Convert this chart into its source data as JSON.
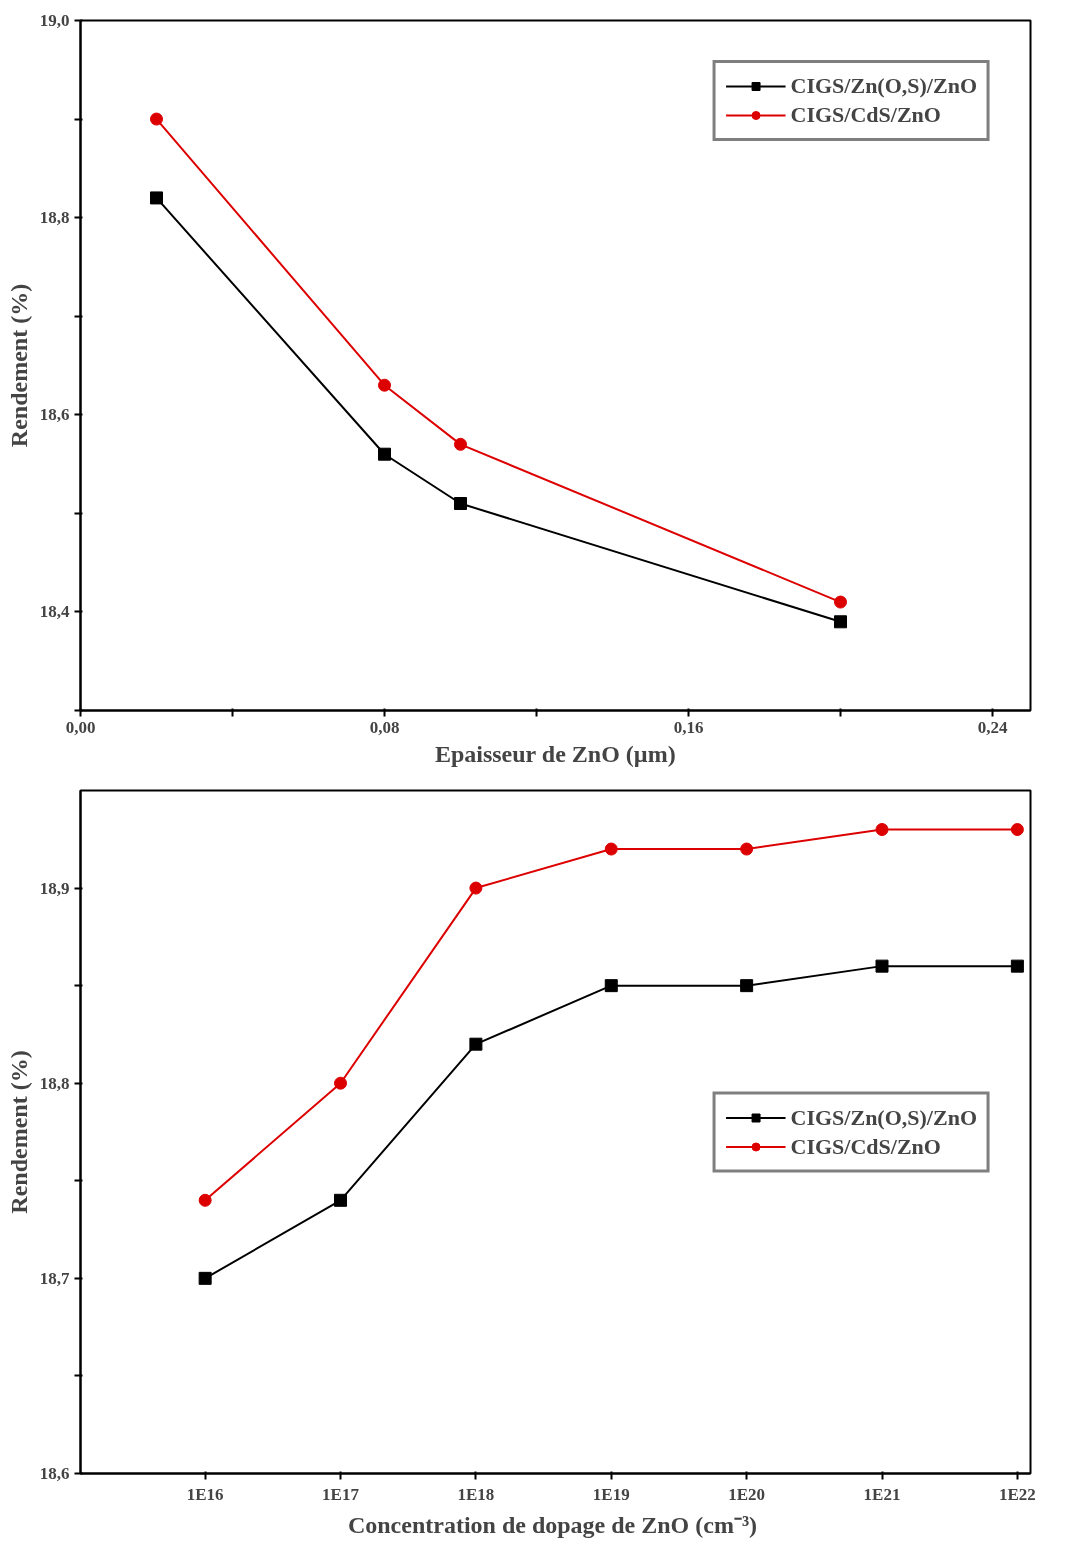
{
  "chart_data": [
    {
      "type": "line",
      "xlabel": "Epaisseur de ZnO (µm)",
      "ylabel": "Rendement (%)",
      "x": [
        0.02,
        0.08,
        0.1,
        0.2
      ],
      "series": [
        {
          "name": "CIGS/Zn(O,S)/ZnO",
          "color": "#000000",
          "marker": "square",
          "values": [
            18.82,
            18.56,
            18.51,
            18.39
          ]
        },
        {
          "name": "CIGS/CdS/ZnO",
          "color": "#dd0000",
          "marker": "circle",
          "values": [
            18.9,
            18.63,
            18.57,
            18.41
          ]
        }
      ],
      "xlim": [
        0,
        0.25
      ],
      "ylim": [
        18.3,
        19.0
      ],
      "xticks": [
        {
          "value": 0,
          "label": "0,00"
        },
        {
          "value": 0.04,
          "label": null
        },
        {
          "value": 0.08,
          "label": "0,08"
        },
        {
          "value": 0.12,
          "label": null
        },
        {
          "value": 0.16,
          "label": "0,16"
        },
        {
          "value": 0.2,
          "label": null
        },
        {
          "value": 0.24,
          "label": "0,24"
        }
      ],
      "yticks": [
        {
          "value": 18.3,
          "label": null
        },
        {
          "value": 18.4,
          "label": "18,4"
        },
        {
          "value": 18.5,
          "label": null
        },
        {
          "value": 18.6,
          "label": "18,6"
        },
        {
          "value": 18.7,
          "label": null
        },
        {
          "value": 18.8,
          "label": "18,8"
        },
        {
          "value": 18.9,
          "label": null
        },
        {
          "value": 19.0,
          "label": "19,0"
        }
      ],
      "grid": false,
      "legend": "top right",
      "line_style": "solid"
    },
    {
      "type": "line",
      "xlabel": "Concentration de dopage  de ZnO (cm⁻³)",
      "ylabel": "Rendement (%)",
      "x": [
        1e+16,
        1e+17,
        1e+18,
        1e+19,
        1e+20,
        1e+21,
        1e+22
      ],
      "series": [
        {
          "name": "CIGS/Zn(O,S)/ZnO",
          "color": "#000000",
          "marker": "square",
          "values": [
            18.7,
            18.74,
            18.82,
            18.85,
            18.85,
            18.86,
            18.86
          ]
        },
        {
          "name": "CIGS/CdS/ZnO",
          "color": "#dd0000",
          "marker": "circle",
          "values": [
            18.74,
            18.8,
            18.9,
            18.92,
            18.92,
            18.93,
            18.93
          ]
        }
      ],
      "log": "x",
      "xlim": [
        1200000000000000.0,
        1.25e+22
      ],
      "ylim": [
        18.6,
        18.95
      ],
      "xticks": [
        {
          "value": 1e+16,
          "label": "1E16"
        },
        {
          "value": 1e+17,
          "label": "1E17"
        },
        {
          "value": 1e+18,
          "label": "1E18"
        },
        {
          "value": 1e+19,
          "label": "1E19"
        },
        {
          "value": 1e+20,
          "label": "1E20"
        },
        {
          "value": 1e+21,
          "label": "1E21"
        },
        {
          "value": 1e+22,
          "label": "1E22"
        }
      ],
      "yticks": [
        {
          "value": 18.6,
          "label": "18,6"
        },
        {
          "value": 18.65,
          "label": null
        },
        {
          "value": 18.7,
          "label": "18,7"
        },
        {
          "value": 18.75,
          "label": null
        },
        {
          "value": 18.8,
          "label": "18,8"
        },
        {
          "value": 18.85,
          "label": null
        },
        {
          "value": 18.9,
          "label": "18,9"
        }
      ],
      "grid": false,
      "legend": "right",
      "line_style": "solid"
    }
  ]
}
